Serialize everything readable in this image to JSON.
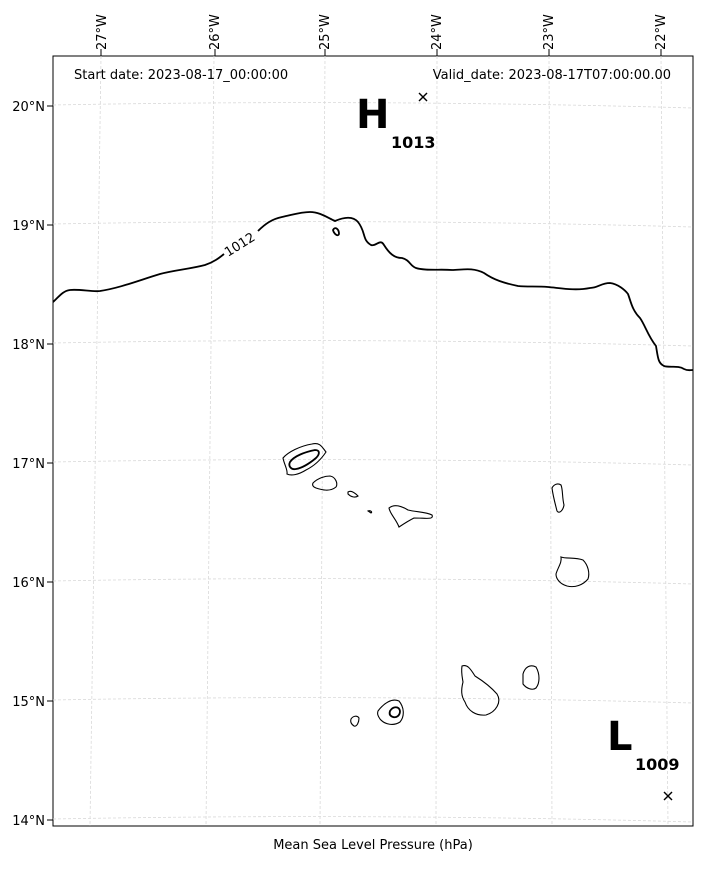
{
  "header": {
    "start_date": "Start date: 2023-08-17_00:00:00",
    "valid_date": "Valid_date: 2023-08-17T07:00:00.00"
  },
  "footer": {
    "caption": "Mean Sea Level Pressure (hPa)"
  },
  "map": {
    "longitude_ticks": [
      "27°W",
      "26°W",
      "25°W",
      "24°W",
      "23°W",
      "22°W"
    ],
    "latitude_ticks": [
      "20°N",
      "19°N",
      "18°N",
      "17°N",
      "16°N",
      "15°N",
      "14°N"
    ],
    "extent": {
      "lon": [
        -27.33,
        -21.78
      ],
      "lat": [
        13.95,
        20.38
      ]
    },
    "contour_label": "1012",
    "high_center": {
      "letter": "H",
      "value": "1013",
      "lon": -24.0,
      "lat": 20.1
    },
    "low_center": {
      "letter": "L",
      "value": "1009",
      "lon": -22.0,
      "lat": 14.2
    },
    "colors": {
      "coast": "#000000",
      "grid": "#cccccc",
      "contour": "#000000"
    }
  }
}
